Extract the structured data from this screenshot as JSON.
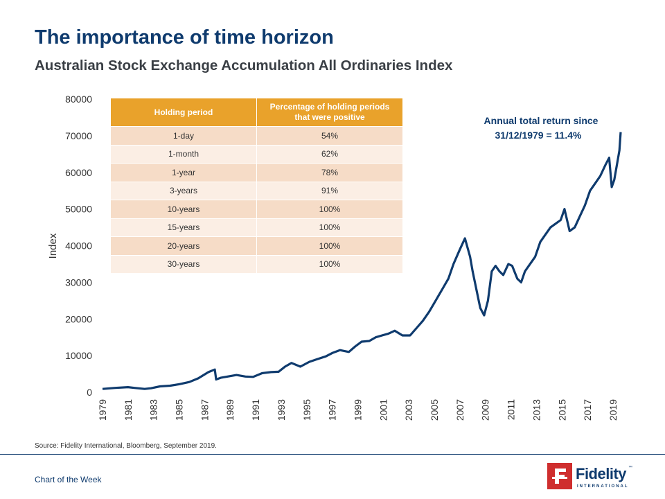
{
  "header": {
    "title": "The importance of time horizon",
    "subtitle": "Australian Stock Exchange Accumulation All Ordinaries Index"
  },
  "table": {
    "headers": [
      "Holding period",
      "Percentage of holding periods that were positive"
    ],
    "rows": [
      [
        "1-day",
        "54%"
      ],
      [
        "1-month",
        "62%"
      ],
      [
        "1-year",
        "78%"
      ],
      [
        "3-years",
        "91%"
      ],
      [
        "10-years",
        "100%"
      ],
      [
        "15-years",
        "100%"
      ],
      [
        "20-years",
        "100%"
      ],
      [
        "30-years",
        "100%"
      ]
    ]
  },
  "chart_data": {
    "type": "line",
    "title": "",
    "xlabel": "",
    "ylabel": "Index",
    "ylim": [
      0,
      80000
    ],
    "xlim": [
      1979,
      2019.6
    ],
    "y_ticks": [
      "0",
      "10000",
      "20000",
      "30000",
      "40000",
      "50000",
      "60000",
      "70000",
      "80000"
    ],
    "x_ticks": [
      "1979",
      "1981",
      "1983",
      "1985",
      "1987",
      "1989",
      "1991",
      "1993",
      "1995",
      "1997",
      "1999",
      "2001",
      "2003",
      "2005",
      "2007",
      "2009",
      "2011",
      "2013",
      "2015",
      "2017",
      "2019"
    ],
    "grid": false,
    "annotation": {
      "text": [
        "Annual total return since",
        "31/12/1979 = 11.4%"
      ]
    },
    "series": [
      {
        "color": "#0f3b6e",
        "x": [
          1979.0,
          1980.0,
          1981.0,
          1981.5,
          1982.3,
          1982.8,
          1983.5,
          1984.3,
          1985.0,
          1985.8,
          1986.5,
          1987.3,
          1987.8,
          1987.9,
          1988.3,
          1989.0,
          1989.5,
          1990.2,
          1990.8,
          1991.5,
          1992.2,
          1992.8,
          1993.3,
          1993.8,
          1994.5,
          1995.2,
          1995.8,
          1996.5,
          1997.0,
          1997.6,
          1998.3,
          1998.8,
          1999.3,
          1999.9,
          2000.4,
          2000.9,
          2001.4,
          2001.9,
          2002.5,
          2003.1,
          2003.6,
          2004.1,
          2004.6,
          2005.1,
          2005.6,
          2006.1,
          2006.5,
          2007.0,
          2007.4,
          2007.8,
          2008.0,
          2008.3,
          2008.6,
          2008.9,
          2009.2,
          2009.5,
          2009.8,
          2010.1,
          2010.4,
          2010.8,
          2011.1,
          2011.5,
          2011.8,
          2012.1,
          2012.5,
          2012.9,
          2013.3,
          2013.7,
          2014.1,
          2014.5,
          2014.9,
          2015.2,
          2015.6,
          2016.0,
          2016.4,
          2016.8,
          2017.2,
          2017.6,
          2018.0,
          2018.4,
          2018.7,
          2018.9,
          2019.1,
          2019.3,
          2019.5,
          2019.6
        ],
        "y": [
          900,
          1200,
          1400,
          1200,
          900,
          1100,
          1600,
          1800,
          2200,
          2800,
          3800,
          5500,
          6200,
          3500,
          4000,
          4400,
          4700,
          4300,
          4200,
          5200,
          5500,
          5600,
          7000,
          8000,
          7000,
          8300,
          9000,
          9800,
          10700,
          11500,
          11000,
          12500,
          13800,
          14000,
          15000,
          15500,
          16000,
          16800,
          15500,
          15500,
          17500,
          19500,
          22000,
          25000,
          28000,
          31000,
          35000,
          39000,
          42000,
          37000,
          33000,
          28000,
          23000,
          21000,
          25000,
          33000,
          34500,
          33000,
          32000,
          35000,
          34500,
          31000,
          30000,
          33000,
          35000,
          37000,
          41000,
          43000,
          45000,
          46000,
          47000,
          50000,
          44000,
          45000,
          48000,
          51000,
          55000,
          57000,
          59000,
          62000,
          64000,
          56000,
          58000,
          62000,
          66000,
          71000
        ]
      }
    ]
  },
  "footer": {
    "source": "Source: Fidelity International, Bloomberg, September 2019.",
    "label": "Chart of the Week",
    "logo_text": "Fidelity",
    "logo_sub": "INTERNATIONAL"
  }
}
